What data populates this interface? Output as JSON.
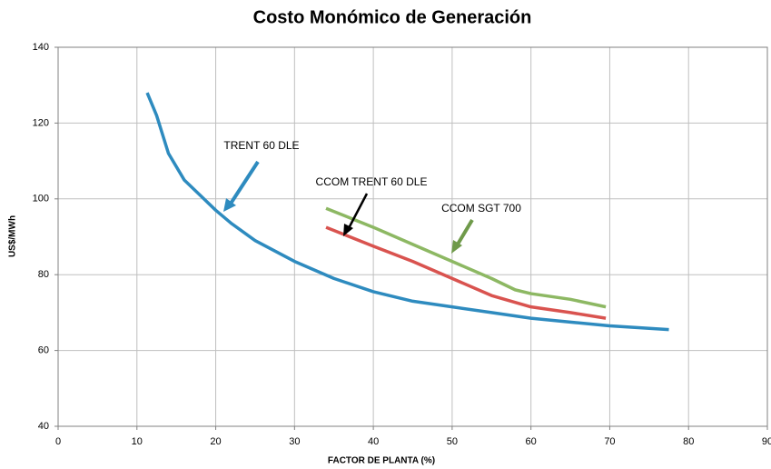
{
  "chart_data": {
    "type": "line",
    "title": "Costo Monómico de Generación",
    "xlabel": "FACTOR DE PLANTA (%)",
    "ylabel": "US$/MWh",
    "xlim": [
      0,
      90
    ],
    "ylim": [
      40,
      140
    ],
    "xticks": [
      0,
      10,
      20,
      30,
      40,
      50,
      60,
      70,
      80,
      90
    ],
    "yticks": [
      40,
      60,
      80,
      100,
      120,
      140
    ],
    "grid": true,
    "annotations": [
      "TRENT 60 DLE",
      "CCOM TRENT 60 DLE",
      "CCOM SGT 700"
    ],
    "series": [
      {
        "color": "#2e8bbf",
        "x": [
          11.3,
          12.5,
          14,
          16,
          18,
          20,
          22,
          25,
          30,
          35,
          40,
          45,
          50,
          55,
          60,
          65,
          70,
          77.5
        ],
        "values": [
          128,
          122,
          112,
          105,
          101,
          97,
          93.5,
          89,
          83.5,
          79,
          75.5,
          73,
          71.5,
          70,
          68.5,
          67.5,
          66.5,
          65.5
        ]
      },
      {
        "color": "#d9534f",
        "x": [
          34,
          40,
          45,
          50,
          55,
          60,
          65,
          69.5
        ],
        "values": [
          92.5,
          87.5,
          83.5,
          79,
          74.5,
          71.5,
          70,
          68.5
        ]
      },
      {
        "color": "#8db863",
        "x": [
          34,
          40,
          45,
          50,
          55,
          58,
          60,
          65,
          69.5
        ],
        "values": [
          97.5,
          92.5,
          88,
          83.5,
          79,
          76,
          75,
          73.5,
          71.5
        ]
      }
    ]
  }
}
